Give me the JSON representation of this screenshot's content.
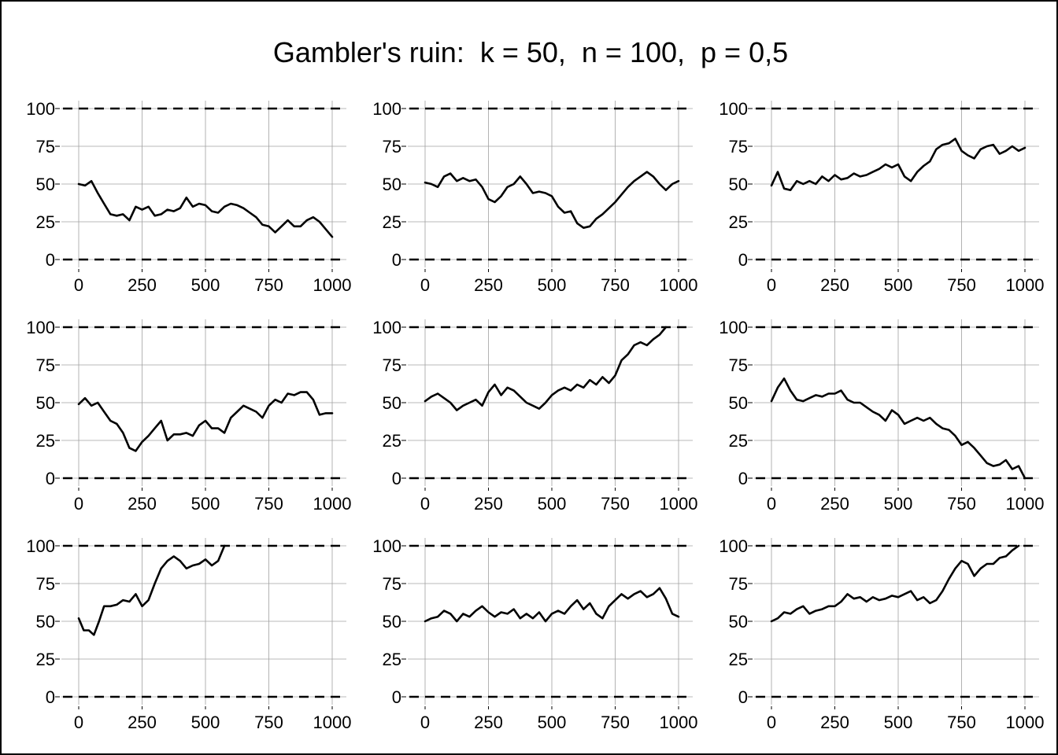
{
  "title": "Gambler's ruin:  k = 50,  n = 100,  p = 0,5",
  "colors": {
    "line": "#000000",
    "grid": "#a0a0a0",
    "boundary": "#000000",
    "frame": "#000000"
  },
  "chart_data": [
    {
      "type": "line",
      "grid": true,
      "xlim": [
        0,
        1000
      ],
      "ylim": [
        0,
        100
      ],
      "x_ticks": [
        "0",
        "250",
        "500",
        "750",
        "1000"
      ],
      "y_ticks": [
        "0",
        "25",
        "50",
        "75",
        "100"
      ],
      "boundaries": [
        0,
        100
      ],
      "series": [
        {
          "x": [
            0,
            25,
            50,
            75,
            100,
            125,
            150,
            175,
            200,
            225,
            250,
            275,
            300,
            325,
            350,
            375,
            400,
            425,
            450,
            475,
            500,
            525,
            550,
            575,
            600,
            625,
            650,
            675,
            700,
            725,
            750,
            775,
            800,
            825,
            850,
            875,
            900,
            925,
            950,
            975,
            1000
          ],
          "values": [
            50,
            49,
            52,
            44,
            37,
            30,
            29,
            30,
            26,
            35,
            33,
            35,
            29,
            30,
            33,
            32,
            34,
            41,
            35,
            37,
            36,
            32,
            31,
            35,
            37,
            36,
            34,
            31,
            28,
            23,
            22,
            18,
            22,
            26,
            22,
            22,
            26,
            28,
            25,
            20,
            15
          ]
        }
      ]
    },
    {
      "type": "line",
      "grid": true,
      "xlim": [
        0,
        1000
      ],
      "ylim": [
        0,
        100
      ],
      "x_ticks": [
        "0",
        "250",
        "500",
        "750",
        "1000"
      ],
      "y_ticks": [
        "0",
        "25",
        "50",
        "75",
        "100"
      ],
      "boundaries": [
        0,
        100
      ],
      "series": [
        {
          "x": [
            0,
            25,
            50,
            75,
            100,
            125,
            150,
            175,
            200,
            225,
            250,
            275,
            300,
            325,
            350,
            375,
            400,
            425,
            450,
            475,
            500,
            525,
            550,
            575,
            600,
            625,
            650,
            675,
            700,
            725,
            750,
            775,
            800,
            825,
            850,
            875,
            900,
            925,
            950,
            975,
            1000
          ],
          "values": [
            51,
            50,
            48,
            55,
            57,
            52,
            54,
            52,
            53,
            48,
            40,
            38,
            42,
            48,
            50,
            55,
            50,
            44,
            45,
            44,
            42,
            35,
            31,
            32,
            24,
            21,
            22,
            27,
            30,
            34,
            38,
            43,
            48,
            52,
            55,
            58,
            55,
            50,
            46,
            50,
            52
          ]
        }
      ]
    },
    {
      "type": "line",
      "grid": true,
      "xlim": [
        0,
        1000
      ],
      "ylim": [
        0,
        100
      ],
      "x_ticks": [
        "0",
        "250",
        "500",
        "750",
        "1000"
      ],
      "y_ticks": [
        "0",
        "25",
        "50",
        "75",
        "100"
      ],
      "boundaries": [
        0,
        100
      ],
      "series": [
        {
          "x": [
            0,
            25,
            50,
            75,
            100,
            125,
            150,
            175,
            200,
            225,
            250,
            275,
            300,
            325,
            350,
            375,
            400,
            425,
            450,
            475,
            500,
            525,
            550,
            575,
            600,
            625,
            650,
            675,
            700,
            725,
            750,
            775,
            800,
            825,
            850,
            875,
            900,
            925,
            950,
            975,
            1000
          ],
          "values": [
            49,
            58,
            47,
            46,
            52,
            50,
            52,
            50,
            55,
            52,
            56,
            53,
            54,
            57,
            55,
            56,
            58,
            60,
            63,
            61,
            63,
            55,
            52,
            58,
            62,
            65,
            73,
            76,
            77,
            80,
            72,
            69,
            67,
            73,
            75,
            76,
            70,
            72,
            75,
            72,
            74
          ]
        }
      ]
    },
    {
      "type": "line",
      "grid": true,
      "xlim": [
        0,
        1000
      ],
      "ylim": [
        0,
        100
      ],
      "x_ticks": [
        "0",
        "250",
        "500",
        "750",
        "1000"
      ],
      "y_ticks": [
        "0",
        "25",
        "50",
        "75",
        "100"
      ],
      "boundaries": [
        0,
        100
      ],
      "series": [
        {
          "x": [
            0,
            25,
            50,
            75,
            100,
            125,
            150,
            175,
            200,
            225,
            250,
            275,
            300,
            325,
            350,
            375,
            400,
            425,
            450,
            475,
            500,
            525,
            550,
            575,
            600,
            625,
            650,
            675,
            700,
            725,
            750,
            775,
            800,
            825,
            850,
            875,
            900,
            925,
            950,
            975,
            1000
          ],
          "values": [
            49,
            53,
            48,
            50,
            44,
            38,
            36,
            30,
            20,
            18,
            24,
            28,
            33,
            38,
            25,
            29,
            29,
            30,
            28,
            35,
            38,
            33,
            33,
            30,
            40,
            44,
            48,
            46,
            44,
            40,
            48,
            52,
            50,
            56,
            55,
            57,
            57,
            52,
            42,
            43,
            43
          ]
        }
      ]
    },
    {
      "type": "line",
      "grid": true,
      "xlim": [
        0,
        1000
      ],
      "ylim": [
        0,
        100
      ],
      "x_ticks": [
        "0",
        "250",
        "500",
        "750",
        "1000"
      ],
      "y_ticks": [
        "0",
        "25",
        "50",
        "75",
        "100"
      ],
      "boundaries": [
        0,
        100
      ],
      "series": [
        {
          "x": [
            0,
            25,
            50,
            75,
            100,
            125,
            150,
            175,
            200,
            225,
            250,
            275,
            300,
            325,
            350,
            375,
            400,
            425,
            450,
            475,
            500,
            525,
            550,
            575,
            600,
            625,
            650,
            675,
            700,
            725,
            750,
            775,
            800,
            825,
            850,
            875,
            900,
            925,
            950
          ],
          "values": [
            51,
            54,
            56,
            53,
            50,
            45,
            48,
            50,
            52,
            48,
            57,
            62,
            55,
            60,
            58,
            54,
            50,
            48,
            46,
            50,
            55,
            58,
            60,
            58,
            62,
            60,
            65,
            62,
            67,
            63,
            68,
            78,
            82,
            88,
            90,
            88,
            92,
            95,
            100
          ]
        }
      ]
    },
    {
      "type": "line",
      "grid": true,
      "xlim": [
        0,
        1000
      ],
      "ylim": [
        0,
        100
      ],
      "x_ticks": [
        "0",
        "250",
        "500",
        "750",
        "1000"
      ],
      "y_ticks": [
        "0",
        "25",
        "50",
        "75",
        "100"
      ],
      "boundaries": [
        0,
        100
      ],
      "series": [
        {
          "x": [
            0,
            25,
            50,
            75,
            100,
            125,
            150,
            175,
            200,
            225,
            250,
            275,
            300,
            325,
            350,
            375,
            400,
            425,
            450,
            475,
            500,
            525,
            550,
            575,
            600,
            625,
            650,
            675,
            700,
            725,
            750,
            775,
            800,
            825,
            850,
            875,
            900,
            925,
            950,
            975,
            1000
          ],
          "values": [
            51,
            60,
            66,
            58,
            52,
            51,
            53,
            55,
            54,
            56,
            56,
            58,
            52,
            50,
            50,
            47,
            44,
            42,
            38,
            45,
            42,
            36,
            38,
            40,
            38,
            40,
            36,
            33,
            32,
            28,
            22,
            24,
            20,
            15,
            10,
            8,
            9,
            12,
            6,
            8,
            0
          ]
        }
      ]
    },
    {
      "type": "line",
      "grid": true,
      "xlim": [
        0,
        1000
      ],
      "ylim": [
        0,
        100
      ],
      "x_ticks": [
        "0",
        "250",
        "500",
        "750",
        "1000"
      ],
      "y_ticks": [
        "0",
        "25",
        "50",
        "75",
        "100"
      ],
      "boundaries": [
        0,
        100
      ],
      "series": [
        {
          "x": [
            0,
            20,
            40,
            60,
            80,
            100,
            125,
            150,
            175,
            200,
            225,
            250,
            275,
            300,
            325,
            350,
            375,
            400,
            425,
            450,
            475,
            500,
            525,
            550,
            575
          ],
          "values": [
            52,
            44,
            44,
            41,
            50,
            60,
            60,
            61,
            64,
            63,
            68,
            60,
            64,
            75,
            85,
            90,
            93,
            90,
            85,
            87,
            88,
            91,
            87,
            90,
            100
          ]
        }
      ]
    },
    {
      "type": "line",
      "grid": true,
      "xlim": [
        0,
        1000
      ],
      "ylim": [
        0,
        100
      ],
      "x_ticks": [
        "0",
        "250",
        "500",
        "750",
        "1000"
      ],
      "y_ticks": [
        "0",
        "25",
        "50",
        "75",
        "100"
      ],
      "boundaries": [
        0,
        100
      ],
      "series": [
        {
          "x": [
            0,
            25,
            50,
            75,
            100,
            125,
            150,
            175,
            200,
            225,
            250,
            275,
            300,
            325,
            350,
            375,
            400,
            425,
            450,
            475,
            500,
            525,
            550,
            575,
            600,
            625,
            650,
            675,
            700,
            725,
            750,
            775,
            800,
            825,
            850,
            875,
            900,
            925,
            950,
            975,
            1000
          ],
          "values": [
            50,
            52,
            53,
            57,
            55,
            50,
            55,
            53,
            57,
            60,
            56,
            53,
            56,
            55,
            58,
            52,
            55,
            52,
            56,
            50,
            55,
            57,
            55,
            60,
            64,
            58,
            62,
            55,
            52,
            60,
            64,
            68,
            65,
            68,
            70,
            66,
            68,
            72,
            65,
            55,
            53
          ]
        }
      ]
    },
    {
      "type": "line",
      "grid": true,
      "xlim": [
        0,
        1000
      ],
      "ylim": [
        0,
        100
      ],
      "x_ticks": [
        "0",
        "250",
        "500",
        "750",
        "1000"
      ],
      "y_ticks": [
        "0",
        "25",
        "50",
        "75",
        "100"
      ],
      "boundaries": [
        0,
        100
      ],
      "series": [
        {
          "x": [
            0,
            25,
            50,
            75,
            100,
            125,
            150,
            175,
            200,
            225,
            250,
            275,
            300,
            325,
            350,
            375,
            400,
            425,
            450,
            475,
            500,
            525,
            550,
            575,
            600,
            625,
            650,
            675,
            700,
            725,
            750,
            775,
            800,
            825,
            850,
            875,
            900,
            925,
            950,
            975
          ],
          "values": [
            50,
            52,
            56,
            55,
            58,
            60,
            55,
            57,
            58,
            60,
            60,
            63,
            68,
            65,
            66,
            63,
            66,
            64,
            65,
            67,
            66,
            68,
            70,
            64,
            66,
            62,
            64,
            70,
            78,
            85,
            90,
            88,
            80,
            85,
            88,
            88,
            92,
            93,
            97,
            100
          ]
        }
      ]
    }
  ]
}
